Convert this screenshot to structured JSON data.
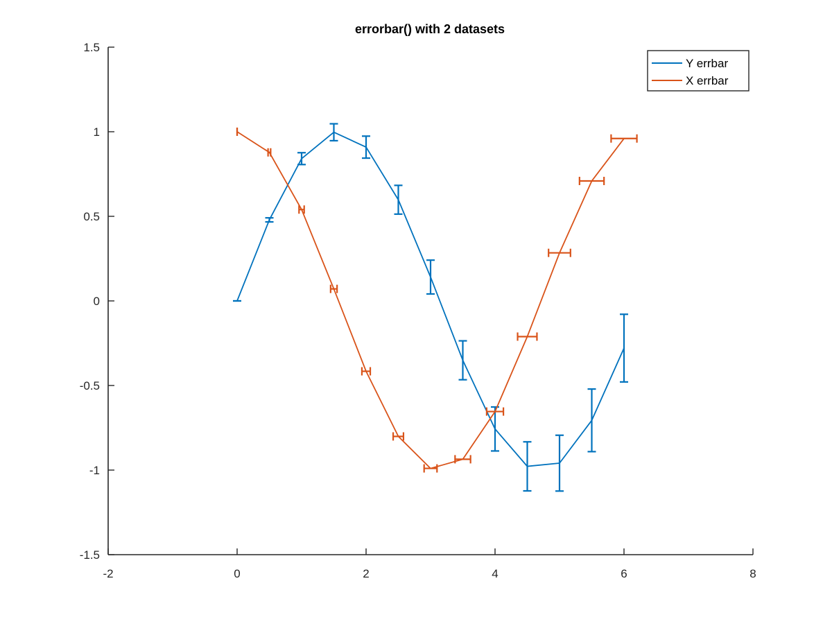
{
  "chart_data": {
    "type": "line",
    "title": "errorbar() with 2 datasets",
    "xlabel": "",
    "ylabel": "",
    "xlim": [
      -2,
      8
    ],
    "ylim": [
      -1.5,
      1.5
    ],
    "xticks": [
      -2,
      0,
      2,
      4,
      6,
      8
    ],
    "xtick_labels": [
      "-2",
      "0",
      "2",
      "4",
      "6",
      "8"
    ],
    "yticks": [
      -1.5,
      -1,
      -0.5,
      0,
      0.5,
      1,
      1.5
    ],
    "ytick_labels": [
      "-1.5",
      "-1",
      "-0.5",
      "0",
      "0.5",
      "1",
      "1.5"
    ],
    "grid": false,
    "legend_position": "top-right",
    "series": [
      {
        "name": "Y errbar",
        "color": "#0072bd",
        "error_direction": "y",
        "points": [
          {
            "x": 0.0,
            "y": 0.0,
            "err": 0.0
          },
          {
            "x": 0.5,
            "y": 0.479,
            "err": 0.012
          },
          {
            "x": 1.0,
            "y": 0.841,
            "err": 0.035
          },
          {
            "x": 1.5,
            "y": 0.997,
            "err": 0.05
          },
          {
            "x": 2.0,
            "y": 0.909,
            "err": 0.065
          },
          {
            "x": 2.5,
            "y": 0.598,
            "err": 0.085
          },
          {
            "x": 3.0,
            "y": 0.141,
            "err": 0.1
          },
          {
            "x": 3.5,
            "y": -0.351,
            "err": 0.115
          },
          {
            "x": 4.0,
            "y": -0.757,
            "err": 0.13
          },
          {
            "x": 4.5,
            "y": -0.978,
            "err": 0.145
          },
          {
            "x": 5.0,
            "y": -0.959,
            "err": 0.165
          },
          {
            "x": 5.5,
            "y": -0.706,
            "err": 0.185
          },
          {
            "x": 6.0,
            "y": -0.279,
            "err": 0.2
          }
        ]
      },
      {
        "name": "X errbar",
        "color": "#d95319",
        "error_direction": "x",
        "points": [
          {
            "x": 0.0,
            "y": 1.0,
            "err": 0.0
          },
          {
            "x": 0.5,
            "y": 0.878,
            "err": 0.02
          },
          {
            "x": 1.0,
            "y": 0.54,
            "err": 0.04
          },
          {
            "x": 1.5,
            "y": 0.071,
            "err": 0.05
          },
          {
            "x": 2.0,
            "y": -0.416,
            "err": 0.065
          },
          {
            "x": 2.5,
            "y": -0.801,
            "err": 0.08
          },
          {
            "x": 3.0,
            "y": -0.99,
            "err": 0.1
          },
          {
            "x": 3.5,
            "y": -0.936,
            "err": 0.12
          },
          {
            "x": 4.0,
            "y": -0.654,
            "err": 0.13
          },
          {
            "x": 4.5,
            "y": -0.211,
            "err": 0.15
          },
          {
            "x": 5.0,
            "y": 0.284,
            "err": 0.17
          },
          {
            "x": 5.5,
            "y": 0.709,
            "err": 0.19
          },
          {
            "x": 6.0,
            "y": 0.96,
            "err": 0.2
          }
        ]
      }
    ]
  }
}
